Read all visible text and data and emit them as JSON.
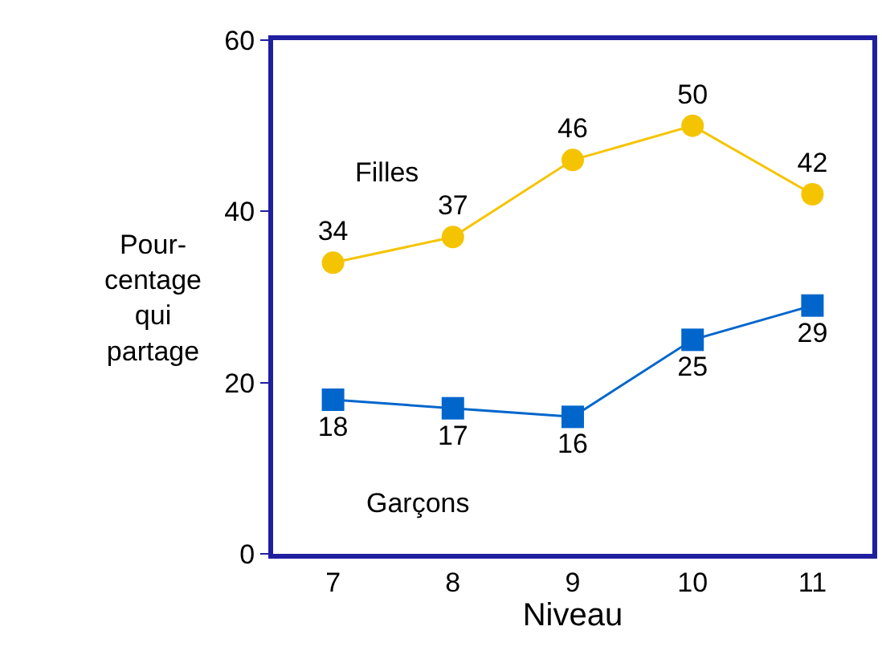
{
  "chart_data": {
    "type": "line",
    "xlabel": "Niveau",
    "ylabel": "Pour-\ncentage\nqui\npartage",
    "categories": [
      "7",
      "8",
      "9",
      "10",
      "11"
    ],
    "series": [
      {
        "name": "Filles",
        "color": "#f5c400",
        "marker": "circle",
        "values": [
          34,
          37,
          46,
          50,
          42
        ]
      },
      {
        "name": "Garçons",
        "color": "#0066cc",
        "marker": "square",
        "values": [
          18,
          17,
          16,
          25,
          29
        ]
      }
    ],
    "ylim": [
      0,
      60
    ],
    "yticks": [
      0,
      20,
      40,
      60
    ],
    "legend": false,
    "data_labels": true
  }
}
